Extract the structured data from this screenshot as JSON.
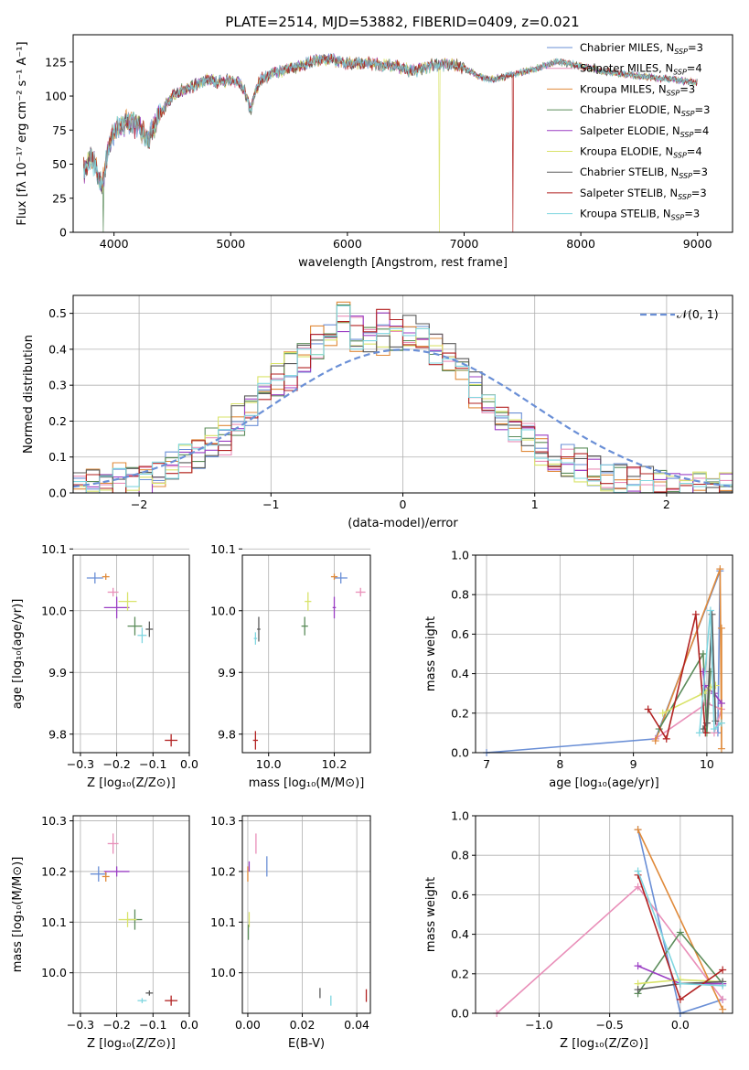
{
  "colors": {
    "chabrier_miles": "#6a8fd6",
    "salpeter_miles": "#e98fb9",
    "kroupa_miles": "#e08a3a",
    "chabrier_elodie": "#5b8c5a",
    "salpeter_elodie": "#9b3fc4",
    "kroupa_elodie": "#d9e36a",
    "chabrier_stelib": "#5a5a5a",
    "salpeter_stelib": "#b22222",
    "kroupa_stelib": "#7fd6e0",
    "gauss": "#6a8fd6",
    "grid": "#b0b0b0"
  },
  "chart_data": [
    {
      "id": "spectrum",
      "type": "line",
      "title": "PLATE=2514, MJD=53882, FIBERID=0409, z=0.021",
      "xlabel": "wavelength [Angstrom, rest frame]",
      "ylabel": "Flux [fλ 10⁻¹⁷ erg cm⁻² s⁻¹ A⁻¹]",
      "xlim": [
        3650,
        9300
      ],
      "ylim": [
        0,
        145
      ],
      "xticks": [
        "4000",
        "5000",
        "6000",
        "7000",
        "8000",
        "9000"
      ],
      "yticks": [
        "0",
        "25",
        "50",
        "75",
        "100",
        "125"
      ],
      "grid": false,
      "legend_position": "top-right",
      "legend": [
        "Chabrier MILES, N_SSP=3",
        "Salpeter MILES, N_SSP=4",
        "Kroupa MILES, N_SSP=3",
        "Chabrier ELODIE, N_SSP=3",
        "Salpeter ELODIE, N_SSP=4",
        "Kroupa ELODIE, N_SSP=4",
        "Chabrier STELIB, N_SSP=3",
        "Salpeter STELIB, N_SSP=3",
        "Kroupa STELIB, N_SSP=3"
      ],
      "trace": {
        "x": [
          3740,
          3800,
          3860,
          3900,
          3950,
          4000,
          4100,
          4200,
          4300,
          4400,
          4500,
          4600,
          4700,
          4800,
          4900,
          5000,
          5100,
          5170,
          5250,
          5400,
          5600,
          5800,
          5900,
          6000,
          6200,
          6400,
          6560,
          6700,
          6900,
          7000,
          7200,
          7400,
          7600,
          7800,
          8000,
          8200,
          8400,
          8600,
          8800,
          9000
        ],
        "y": [
          45,
          55,
          45,
          35,
          60,
          75,
          80,
          78,
          70,
          88,
          100,
          105,
          108,
          112,
          110,
          112,
          108,
          90,
          112,
          118,
          122,
          128,
          126,
          124,
          124,
          122,
          118,
          122,
          124,
          120,
          112,
          115,
          120,
          125,
          122,
          118,
          116,
          114,
          112,
          110
        ]
      },
      "drops": [
        {
          "x": 3910,
          "series": "Chabrier ELODIE, N_SSP=3"
        },
        {
          "x": 6790,
          "series": "Kroupa ELODIE, N_SSP=4"
        },
        {
          "x": 7420,
          "series": "Salpeter STELIB, N_SSP=3"
        }
      ]
    },
    {
      "id": "residual-histogram",
      "type": "bar",
      "xlabel": "(data-model)/error",
      "ylabel": "Normed distribution",
      "xlim": [
        -2.5,
        2.5
      ],
      "ylim": [
        0,
        0.55
      ],
      "xticks": [
        "−2",
        "−1",
        "0",
        "1",
        "2"
      ],
      "yticks": [
        "0.0",
        "0.1",
        "0.2",
        "0.3",
        "0.4",
        "0.5"
      ],
      "grid": true,
      "legend_position": "top-right",
      "legend": [
        "𝒩(0, 1)"
      ],
      "bins_start": -2.5,
      "bin_width": 0.1,
      "series": [
        {
          "values": [
            0.02,
            0.02,
            0.03,
            0.03,
            0.04,
            0.04,
            0.06,
            0.07,
            0.09,
            0.11,
            0.14,
            0.16,
            0.2,
            0.23,
            0.27,
            0.31,
            0.35,
            0.38,
            0.41,
            0.44,
            0.48,
            0.44,
            0.43,
            0.45,
            0.42,
            0.46,
            0.43,
            0.41,
            0.38,
            0.34,
            0.3,
            0.26,
            0.22,
            0.19,
            0.16,
            0.13,
            0.11,
            0.09,
            0.08,
            0.06,
            0.05,
            0.04,
            0.03,
            0.03,
            0.02,
            0.02,
            0.02,
            0.02,
            0.02,
            0.02
          ]
        },
        {
          "values": [
            0.02,
            0.02,
            0.02,
            0.03,
            0.03,
            0.04,
            0.05,
            0.06,
            0.08,
            0.11,
            0.13,
            0.15,
            0.18,
            0.22,
            0.26,
            0.3,
            0.33,
            0.37,
            0.4,
            0.43,
            0.46,
            0.5,
            0.45,
            0.47,
            0.44,
            0.42,
            0.45,
            0.4,
            0.37,
            0.33,
            0.28,
            0.25,
            0.21,
            0.18,
            0.15,
            0.12,
            0.1,
            0.08,
            0.07,
            0.06,
            0.05,
            0.04,
            0.03,
            0.03,
            0.02,
            0.02,
            0.02,
            0.01,
            0.01,
            0.01
          ]
        },
        {
          "values": [
            0.02,
            0.03,
            0.03,
            0.04,
            0.04,
            0.05,
            0.06,
            0.08,
            0.1,
            0.12,
            0.15,
            0.17,
            0.21,
            0.24,
            0.28,
            0.32,
            0.36,
            0.39,
            0.42,
            0.45,
            0.49,
            0.43,
            0.44,
            0.41,
            0.46,
            0.42,
            0.44,
            0.39,
            0.36,
            0.31,
            0.27,
            0.23,
            0.2,
            0.17,
            0.14,
            0.12,
            0.1,
            0.08,
            0.07,
            0.05,
            0.04,
            0.04,
            0.03,
            0.02,
            0.02,
            0.02,
            0.02,
            0.02,
            0.02,
            0.02
          ]
        }
      ],
      "gaussian": {
        "mu": 0,
        "sigma": 1
      }
    },
    {
      "id": "age-vs-z",
      "type": "scatter",
      "xlabel": "Z [log₁₀(Z/Z⊙)]",
      "ylabel": "age  [log₁₀(age/yr)]",
      "xlim": [
        -0.32,
        0.0
      ],
      "ylim": [
        9.77,
        10.09
      ],
      "xticks": [
        "−0.3",
        "−0.2",
        "−0.1",
        "0.0"
      ],
      "yticks": [
        "9.8",
        "9.9",
        "10.0",
        "10.1"
      ],
      "grid": true
    },
    {
      "id": "age-vs-mass",
      "type": "scatter",
      "xlabel": "mass [log₁₀(M/M⊙)]",
      "xlim": [
        9.92,
        10.31
      ],
      "ylim": [
        9.77,
        10.09
      ],
      "xticks": [
        "10.0",
        "10.2"
      ],
      "yticks": [
        "9.8",
        "9.9",
        "10.0",
        "10.1"
      ],
      "grid": true
    },
    {
      "id": "massweight-vs-age",
      "type": "line",
      "xlabel": "age  [log₁₀(age/yr)]",
      "ylabel": "mass weight",
      "xlim": [
        6.85,
        10.35
      ],
      "ylim": [
        0,
        1.0
      ],
      "xticks": [
        "7",
        "8",
        "9",
        "10"
      ],
      "yticks": [
        "0.0",
        "0.2",
        "0.4",
        "0.6",
        "0.8",
        "1.0"
      ],
      "grid": true
    },
    {
      "id": "mass-vs-z",
      "type": "scatter",
      "xlabel": "Z [log₁₀(Z/Z⊙)]",
      "ylabel": "mass [log₁₀(M/M⊙)]",
      "xlim": [
        -0.32,
        0.0
      ],
      "ylim": [
        9.92,
        10.31
      ],
      "xticks": [
        "−0.3",
        "−0.2",
        "−0.1",
        "0.0"
      ],
      "yticks": [
        "10.0",
        "10.1",
        "10.2",
        "10.3"
      ],
      "grid": true
    },
    {
      "id": "mass-vs-ebv",
      "type": "scatter",
      "xlabel": "E(B-V)",
      "xlim": [
        -0.002,
        0.045
      ],
      "ylim": [
        9.92,
        10.31
      ],
      "xticks": [
        "0.00",
        "0.02",
        "0.04"
      ],
      "yticks": [
        "10.0",
        "10.1",
        "10.2",
        "10.3"
      ],
      "grid": true
    },
    {
      "id": "massweight-vs-z",
      "type": "line",
      "xlabel": "Z [log₁₀(Z/Z⊙)]",
      "ylabel": "mass weight",
      "xlim": [
        -1.45,
        0.37
      ],
      "ylim": [
        0,
        1.0
      ],
      "xticks": [
        "−1.0",
        "−0.5",
        "0.0"
      ],
      "yticks": [
        "0.0",
        "0.2",
        "0.4",
        "0.6",
        "0.8",
        "1.0"
      ],
      "grid": true
    }
  ],
  "scatter_points": {
    "age-vs-z": [
      {
        "c": "chabrier_miles",
        "x": -0.26,
        "y": 10.053,
        "dx": 0.045,
        "dy": 0.018
      },
      {
        "c": "salpeter_miles",
        "x": -0.21,
        "y": 10.03,
        "dx": 0.03,
        "dy": 0.014
      },
      {
        "c": "kroupa_miles",
        "x": -0.23,
        "y": 10.055,
        "dx": 0.02,
        "dy": 0.01
      },
      {
        "c": "chabrier_elodie",
        "x": -0.15,
        "y": 9.975,
        "dx": 0.04,
        "dy": 0.03
      },
      {
        "c": "salpeter_elodie",
        "x": -0.2,
        "y": 10.005,
        "dx": 0.07,
        "dy": 0.035
      },
      {
        "c": "kroupa_elodie",
        "x": -0.17,
        "y": 10.015,
        "dx": 0.05,
        "dy": 0.03
      },
      {
        "c": "chabrier_stelib",
        "x": -0.11,
        "y": 9.97,
        "dx": 0.02,
        "dy": 0.025
      },
      {
        "c": "salpeter_stelib",
        "x": -0.05,
        "y": 9.79,
        "dx": 0.035,
        "dy": 0.02
      },
      {
        "c": "kroupa_stelib",
        "x": -0.13,
        "y": 9.96,
        "dx": 0.025,
        "dy": 0.025
      }
    ],
    "age-vs-mass": [
      {
        "c": "chabrier_miles",
        "x": 10.22,
        "y": 10.053,
        "dx": 0.04,
        "dy": 0.018
      },
      {
        "c": "salpeter_miles",
        "x": 10.28,
        "y": 10.03,
        "dx": 0.03,
        "dy": 0.014
      },
      {
        "c": "kroupa_miles",
        "x": 10.2,
        "y": 10.055,
        "dx": 0.02,
        "dy": 0.01
      },
      {
        "c": "chabrier_elodie",
        "x": 10.11,
        "y": 9.975,
        "dx": 0.02,
        "dy": 0.03
      },
      {
        "c": "salpeter_elodie",
        "x": 10.2,
        "y": 10.005,
        "dx": 0.01,
        "dy": 0.035
      },
      {
        "c": "kroupa_elodie",
        "x": 10.12,
        "y": 10.015,
        "dx": 0.02,
        "dy": 0.03
      },
      {
        "c": "chabrier_stelib",
        "x": 9.97,
        "y": 9.97,
        "dx": 0.01,
        "dy": 0.04
      },
      {
        "c": "salpeter_stelib",
        "x": 9.96,
        "y": 9.79,
        "dx": 0.015,
        "dy": 0.03
      },
      {
        "c": "kroupa_stelib",
        "x": 9.96,
        "y": 9.955,
        "dx": 0.01,
        "dy": 0.02
      }
    ],
    "mass-vs-z": [
      {
        "c": "chabrier_miles",
        "x": -0.25,
        "y": 10.195,
        "dx": 0.045,
        "dy": 0.03
      },
      {
        "c": "salpeter_miles",
        "x": -0.21,
        "y": 10.255,
        "dx": 0.03,
        "dy": 0.04
      },
      {
        "c": "kroupa_miles",
        "x": -0.23,
        "y": 10.19,
        "dx": 0.02,
        "dy": 0.02
      },
      {
        "c": "chabrier_elodie",
        "x": -0.15,
        "y": 10.105,
        "dx": 0.04,
        "dy": 0.04
      },
      {
        "c": "salpeter_elodie",
        "x": -0.2,
        "y": 10.2,
        "dx": 0.07,
        "dy": 0.02
      },
      {
        "c": "kroupa_elodie",
        "x": -0.17,
        "y": 10.105,
        "dx": 0.05,
        "dy": 0.03
      },
      {
        "c": "chabrier_stelib",
        "x": -0.11,
        "y": 9.96,
        "dx": 0.02,
        "dy": 0.01
      },
      {
        "c": "salpeter_stelib",
        "x": -0.05,
        "y": 9.945,
        "dx": 0.035,
        "dy": 0.02
      },
      {
        "c": "kroupa_stelib",
        "x": -0.13,
        "y": 9.945,
        "dx": 0.025,
        "dy": 0.01
      }
    ],
    "mass-vs-ebv": [
      {
        "c": "kroupa_miles",
        "x": 0.0,
        "y": 10.195,
        "dx": 0.0,
        "dy": 0.03
      },
      {
        "c": "salpeter_elodie",
        "x": 0.0005,
        "y": 10.21,
        "dx": 0.0,
        "dy": 0.02
      },
      {
        "c": "chabrier_miles",
        "x": 0.007,
        "y": 10.21,
        "dx": 0.0,
        "dy": 0.04
      },
      {
        "c": "salpeter_miles",
        "x": 0.003,
        "y": 10.255,
        "dx": 0.0,
        "dy": 0.04
      },
      {
        "c": "kroupa_elodie",
        "x": 0.0005,
        "y": 10.105,
        "dx": 0.0,
        "dy": 0.03
      },
      {
        "c": "chabrier_elodie",
        "x": 0.0002,
        "y": 10.08,
        "dx": 0.0,
        "dy": 0.03
      },
      {
        "c": "chabrier_stelib",
        "x": 0.0265,
        "y": 9.96,
        "dx": 0.0,
        "dy": 0.02
      },
      {
        "c": "kroupa_stelib",
        "x": 0.0305,
        "y": 9.945,
        "dx": 0.0,
        "dy": 0.02
      },
      {
        "c": "salpeter_stelib",
        "x": 0.0435,
        "y": 9.955,
        "dx": 0.0,
        "dy": 0.025
      }
    ]
  },
  "weight_lines": {
    "massweight-vs-age": [
      {
        "c": "chabrier_miles",
        "pts": [
          [
            7.0,
            0.0
          ],
          [
            9.3,
            0.07
          ],
          [
            10.18,
            0.92
          ],
          [
            10.15,
            0.1
          ]
        ]
      },
      {
        "c": "salpeter_miles",
        "pts": [
          [
            9.3,
            0.07
          ],
          [
            10.0,
            0.25
          ],
          [
            10.2,
            0.22
          ],
          [
            10.1,
            0.1
          ]
        ]
      },
      {
        "c": "kroupa_miles",
        "pts": [
          [
            9.3,
            0.06
          ],
          [
            10.18,
            0.93
          ],
          [
            10.2,
            0.02
          ],
          [
            10.2,
            0.63
          ]
        ]
      },
      {
        "c": "chabrier_elodie",
        "pts": [
          [
            9.35,
            0.12
          ],
          [
            9.95,
            0.5
          ],
          [
            10.0,
            0.1
          ],
          [
            10.05,
            0.41
          ]
        ]
      },
      {
        "c": "salpeter_elodie",
        "pts": [
          [
            9.95,
            0.41
          ],
          [
            9.97,
            0.34
          ],
          [
            10.1,
            0.3
          ],
          [
            10.2,
            0.25
          ]
        ]
      },
      {
        "c": "kroupa_elodie",
        "pts": [
          [
            9.4,
            0.2
          ],
          [
            9.95,
            0.3
          ],
          [
            10.05,
            0.33
          ],
          [
            10.12,
            0.34
          ]
        ]
      },
      {
        "c": "chabrier_stelib",
        "pts": [
          [
            9.95,
            0.12
          ],
          [
            10.0,
            0.15
          ],
          [
            10.07,
            0.7
          ],
          [
            10.12,
            0.16
          ]
        ]
      },
      {
        "c": "salpeter_stelib",
        "pts": [
          [
            9.2,
            0.22
          ],
          [
            9.45,
            0.07
          ],
          [
            9.85,
            0.7
          ],
          [
            9.98,
            0.1
          ]
        ]
      },
      {
        "c": "kroupa_stelib",
        "pts": [
          [
            9.9,
            0.1
          ],
          [
            10.05,
            0.72
          ],
          [
            10.1,
            0.12
          ],
          [
            10.2,
            0.15
          ]
        ]
      }
    ],
    "massweight-vs-z": [
      {
        "c": "chabrier_miles",
        "pts": [
          [
            -0.3,
            0.93
          ],
          [
            0.0,
            0.0
          ],
          [
            0.3,
            0.07
          ]
        ]
      },
      {
        "c": "salpeter_miles",
        "pts": [
          [
            -1.3,
            0.0
          ],
          [
            -0.3,
            0.64
          ],
          [
            0.3,
            0.07
          ]
        ]
      },
      {
        "c": "kroupa_miles",
        "pts": [
          [
            -0.3,
            0.93
          ],
          [
            0.3,
            0.02
          ]
        ]
      },
      {
        "c": "chabrier_elodie",
        "pts": [
          [
            -0.3,
            0.1
          ],
          [
            0.0,
            0.41
          ],
          [
            0.3,
            0.15
          ]
        ]
      },
      {
        "c": "salpeter_elodie",
        "pts": [
          [
            -0.3,
            0.24
          ],
          [
            0.0,
            0.15
          ],
          [
            0.3,
            0.15
          ]
        ]
      },
      {
        "c": "kroupa_elodie",
        "pts": [
          [
            -0.3,
            0.15
          ],
          [
            0.0,
            0.17
          ],
          [
            0.3,
            0.16
          ]
        ]
      },
      {
        "c": "chabrier_stelib",
        "pts": [
          [
            -0.3,
            0.12
          ],
          [
            0.0,
            0.15
          ],
          [
            0.3,
            0.16
          ]
        ]
      },
      {
        "c": "salpeter_stelib",
        "pts": [
          [
            -0.3,
            0.7
          ],
          [
            0.0,
            0.07
          ],
          [
            0.3,
            0.22
          ]
        ]
      },
      {
        "c": "kroupa_stelib",
        "pts": [
          [
            -0.3,
            0.72
          ],
          [
            0.0,
            0.15
          ],
          [
            0.3,
            0.14
          ]
        ]
      }
    ]
  }
}
